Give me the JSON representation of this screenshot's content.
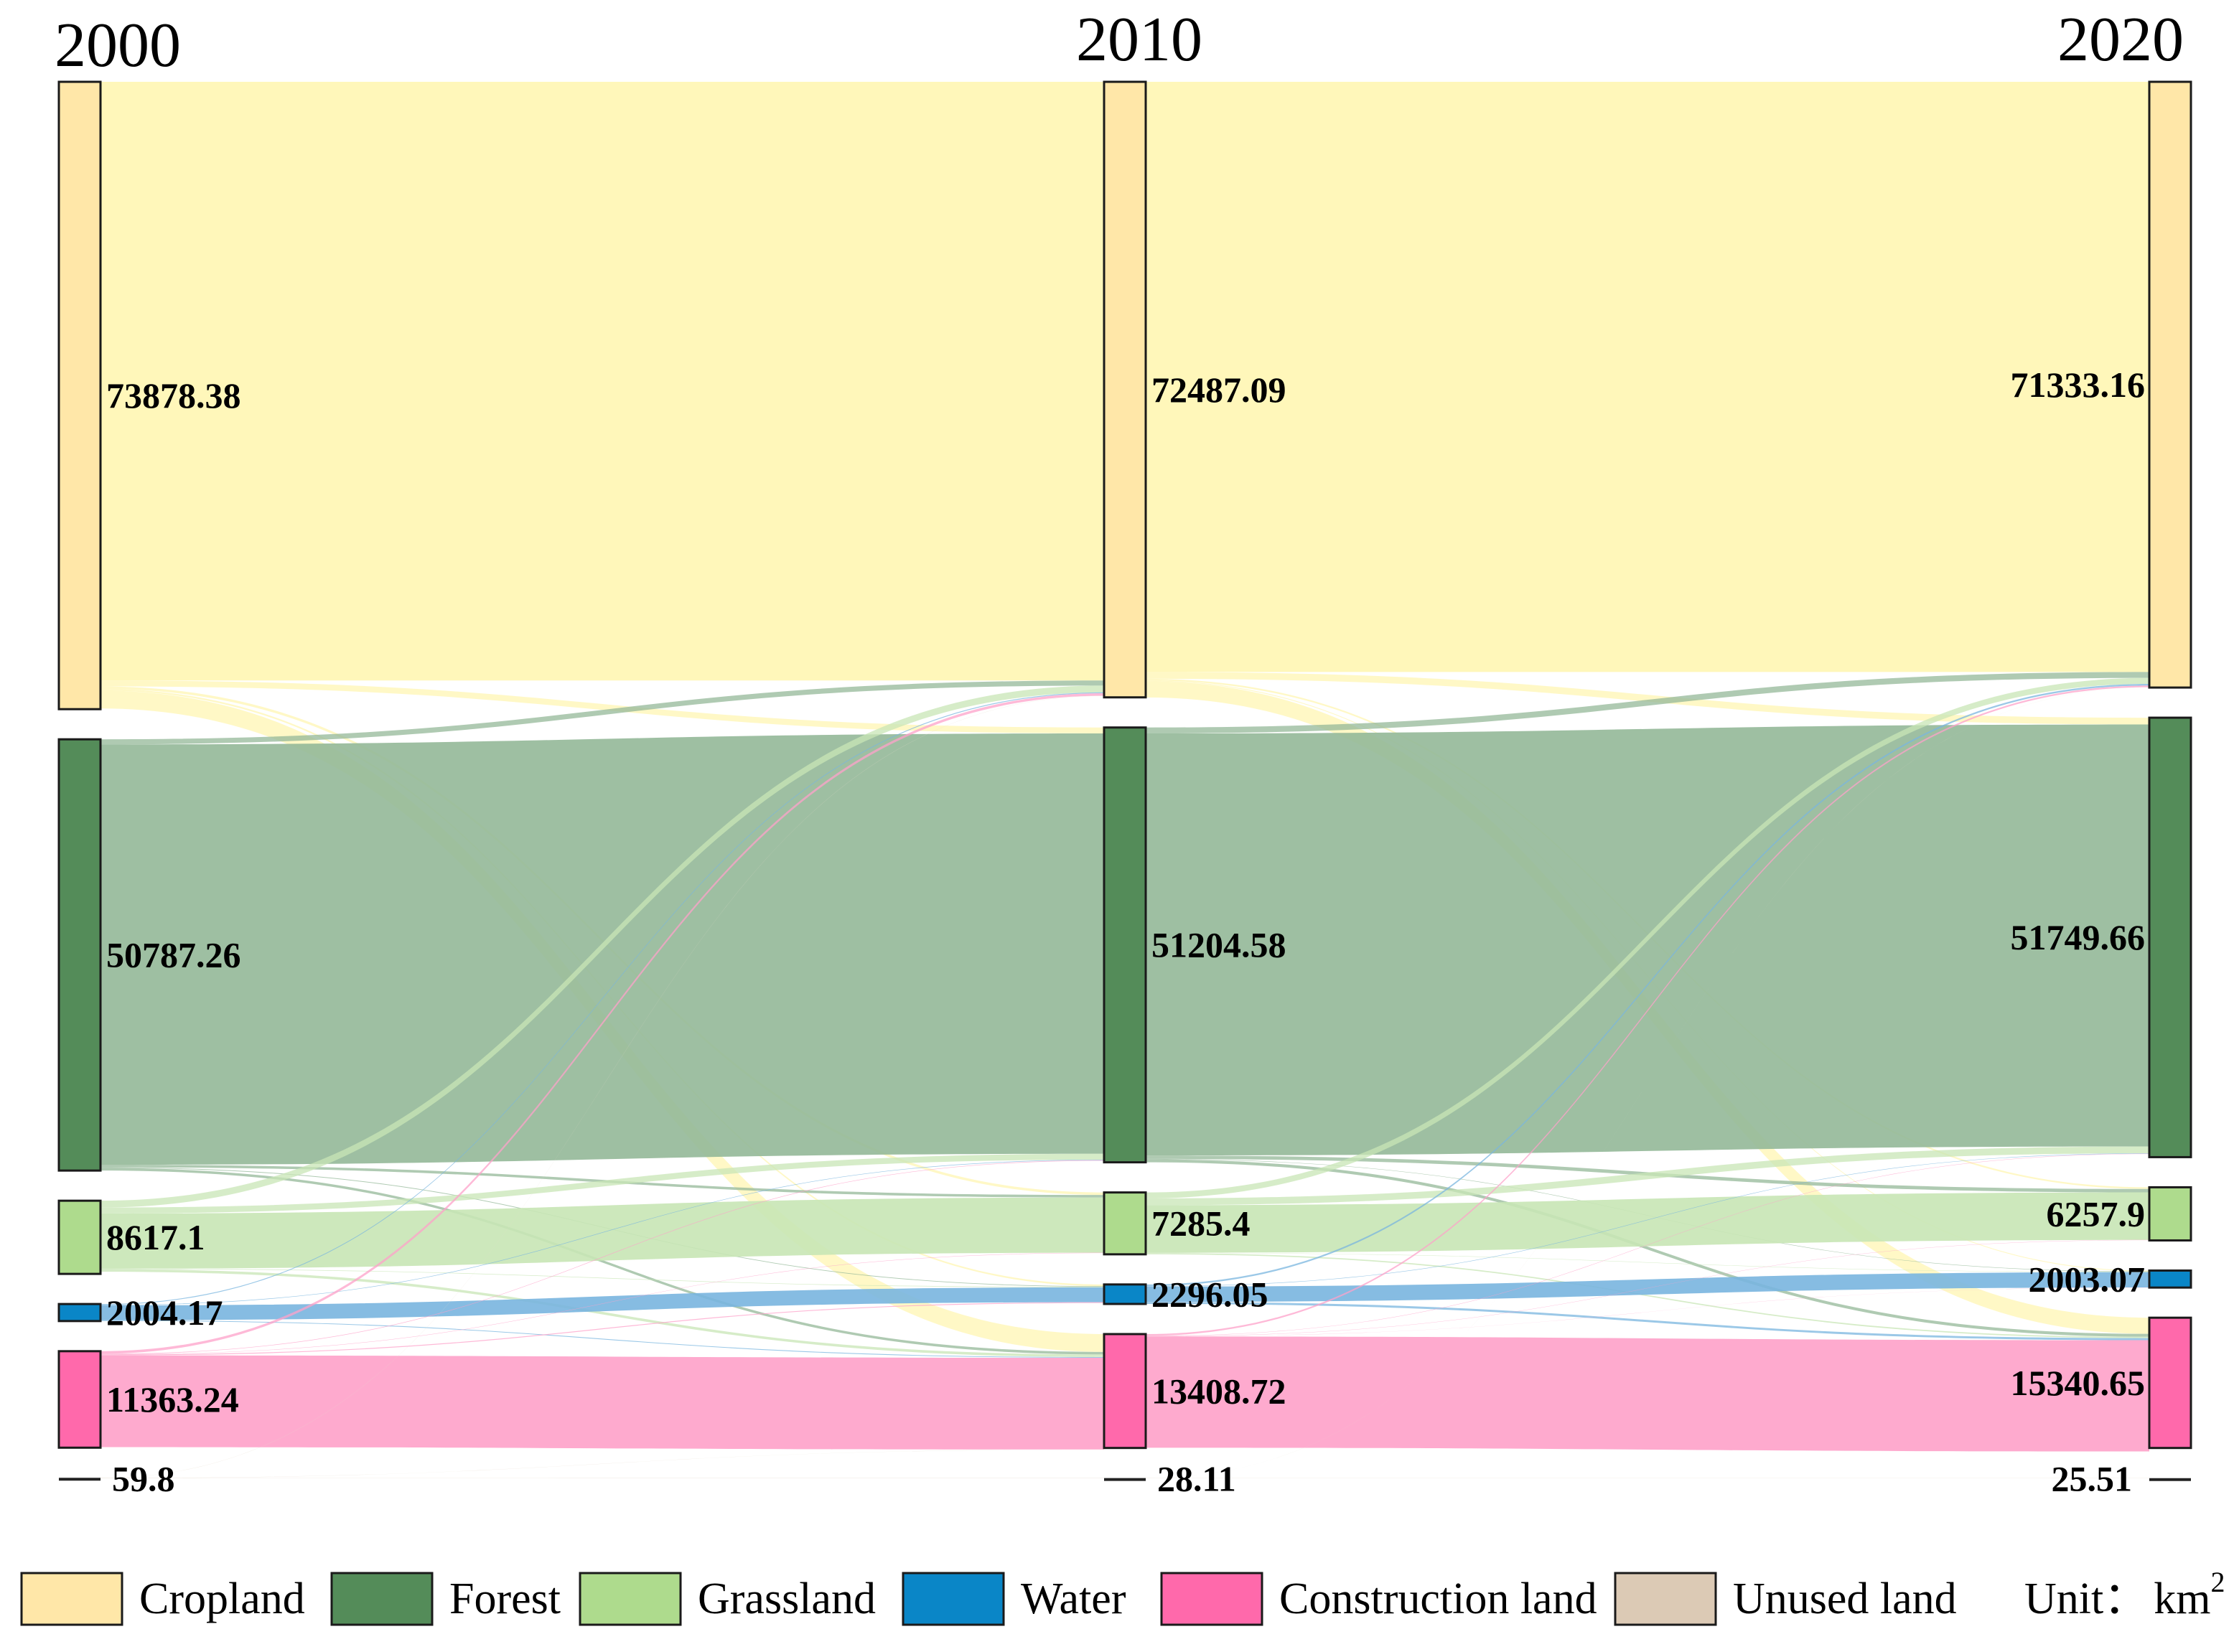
{
  "chart_data": {
    "type": "sankey",
    "title": "",
    "unit_label": "Unit：",
    "unit_base": "km",
    "unit_sup": "2",
    "years": [
      "2000",
      "2010",
      "2020"
    ],
    "categories": [
      {
        "name": "Cropland",
        "color": "#ffe7a8",
        "flow_color": "#fff6b3"
      },
      {
        "name": "Forest",
        "color": "#548c59",
        "flow_color": "#94b898"
      },
      {
        "name": "Grassland",
        "color": "#aedb8d",
        "flow_color": "#c8e6b5"
      },
      {
        "name": "Water",
        "color": "#0a86c7",
        "flow_color": "#79b5df"
      },
      {
        "name": "Construction land",
        "color": "#ff69ab",
        "flow_color": "#fea1c9"
      },
      {
        "name": "Unused land",
        "color": "#dccab5",
        "flow_color": "#e7dccd"
      }
    ],
    "values": {
      "2000": [
        73878.38,
        50787.26,
        8617.1,
        2004.17,
        11363.24,
        59.8
      ],
      "2010": [
        72487.09,
        51204.58,
        7285.4,
        2296.05,
        13408.72,
        28.11
      ],
      "2020": [
        71333.16,
        51749.66,
        6257.9,
        2003.07,
        15340.65,
        25.51
      ]
    },
    "value_labels": {
      "2000": [
        "73878.38",
        "50787.26",
        "8617.1",
        "2004.17",
        "11363.24",
        "59.8"
      ],
      "2010": [
        "72487.09",
        "51204.58",
        "7285.4",
        "2296.05",
        "13408.72",
        "28.11"
      ],
      "2020": [
        "71333.16",
        "51749.66",
        "6257.9",
        "2003.07",
        "15340.65",
        "25.51"
      ]
    },
    "transitions": [
      {
        "from": "2000",
        "to": "2010",
        "flows": [
          {
            "source": "Cropland",
            "target": "Cropland",
            "value": 70500
          },
          {
            "source": "Cropland",
            "target": "Forest",
            "value": 700
          },
          {
            "source": "Cropland",
            "target": "Grassland",
            "value": 300
          },
          {
            "source": "Cropland",
            "target": "Water",
            "value": 200
          },
          {
            "source": "Cropland",
            "target": "Construction land",
            "value": 2100
          },
          {
            "source": "Forest",
            "target": "Cropland",
            "value": 600
          },
          {
            "source": "Forest",
            "target": "Forest",
            "value": 49500
          },
          {
            "source": "Forest",
            "target": "Grassland",
            "value": 300
          },
          {
            "source": "Forest",
            "target": "Water",
            "value": 80
          },
          {
            "source": "Forest",
            "target": "Construction land",
            "value": 300
          },
          {
            "source": "Grassland",
            "target": "Cropland",
            "value": 800
          },
          {
            "source": "Grassland",
            "target": "Forest",
            "value": 700
          },
          {
            "source": "Grassland",
            "target": "Grassland",
            "value": 6500
          },
          {
            "source": "Grassland",
            "target": "Water",
            "value": 60
          },
          {
            "source": "Grassland",
            "target": "Construction land",
            "value": 300
          },
          {
            "source": "Water",
            "target": "Cropland",
            "value": 100
          },
          {
            "source": "Water",
            "target": "Forest",
            "value": 60
          },
          {
            "source": "Water",
            "target": "Water",
            "value": 1750
          },
          {
            "source": "Water",
            "target": "Construction land",
            "value": 90
          },
          {
            "source": "Construction land",
            "target": "Cropland",
            "value": 300
          },
          {
            "source": "Construction land",
            "target": "Forest",
            "value": 60
          },
          {
            "source": "Construction land",
            "target": "Grassland",
            "value": 40
          },
          {
            "source": "Construction land",
            "target": "Water",
            "value": 100
          },
          {
            "source": "Construction land",
            "target": "Construction land",
            "value": 10800
          },
          {
            "source": "Unused land",
            "target": "Cropland",
            "value": 20
          },
          {
            "source": "Unused land",
            "target": "Construction land",
            "value": 15
          },
          {
            "source": "Unused land",
            "target": "Unused land",
            "value": 25
          }
        ]
      },
      {
        "from": "2010",
        "to": "2020",
        "flows": [
          {
            "source": "Cropland",
            "target": "Cropland",
            "value": 69500
          },
          {
            "source": "Cropland",
            "target": "Forest",
            "value": 800
          },
          {
            "source": "Cropland",
            "target": "Grassland",
            "value": 200
          },
          {
            "source": "Cropland",
            "target": "Water",
            "value": 100
          },
          {
            "source": "Cropland",
            "target": "Construction land",
            "value": 1900
          },
          {
            "source": "Forest",
            "target": "Cropland",
            "value": 700
          },
          {
            "source": "Forest",
            "target": "Forest",
            "value": 49700
          },
          {
            "source": "Forest",
            "target": "Grassland",
            "value": 400
          },
          {
            "source": "Forest",
            "target": "Water",
            "value": 50
          },
          {
            "source": "Forest",
            "target": "Construction land",
            "value": 350
          },
          {
            "source": "Grassland",
            "target": "Cropland",
            "value": 700
          },
          {
            "source": "Grassland",
            "target": "Forest",
            "value": 800
          },
          {
            "source": "Grassland",
            "target": "Grassland",
            "value": 5600
          },
          {
            "source": "Grassland",
            "target": "Water",
            "value": 40
          },
          {
            "source": "Grassland",
            "target": "Construction land",
            "value": 150
          },
          {
            "source": "Water",
            "target": "Cropland",
            "value": 200
          },
          {
            "source": "Water",
            "target": "Forest",
            "value": 50
          },
          {
            "source": "Water",
            "target": "Water",
            "value": 1800
          },
          {
            "source": "Water",
            "target": "Construction land",
            "value": 250
          },
          {
            "source": "Construction land",
            "target": "Cropland",
            "value": 200
          },
          {
            "source": "Construction land",
            "target": "Forest",
            "value": 40
          },
          {
            "source": "Construction land",
            "target": "Grassland",
            "value": 30
          },
          {
            "source": "Construction land",
            "target": "Water",
            "value": 15
          },
          {
            "source": "Construction land",
            "target": "Construction land",
            "value": 13100
          },
          {
            "source": "Unused land",
            "target": "Cropland",
            "value": 5
          },
          {
            "source": "Unused land",
            "target": "Unused land",
            "value": 23
          }
        ]
      }
    ]
  }
}
